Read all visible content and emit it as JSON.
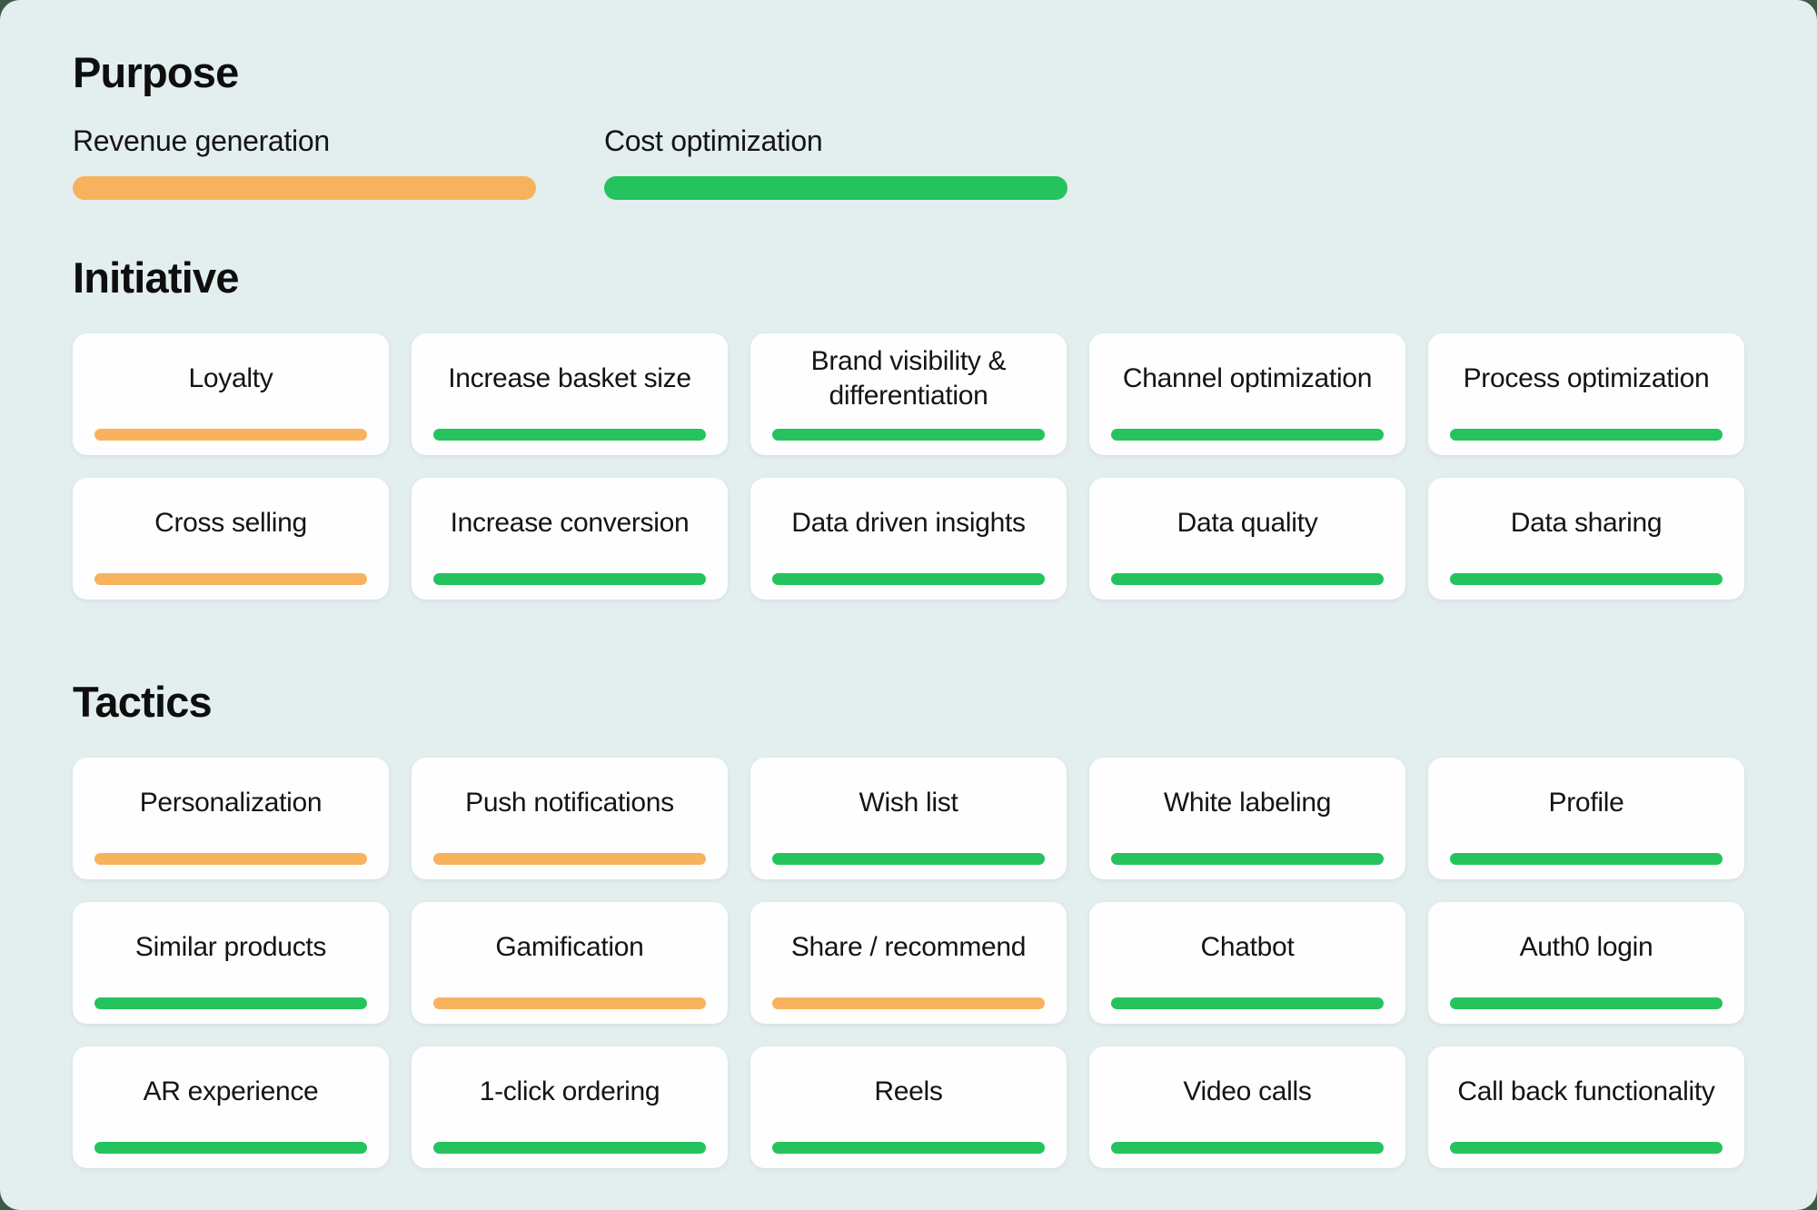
{
  "colors": {
    "background": "#E3EEEF",
    "behind_page": "#3D5A47",
    "card_background": "#FEFEFE",
    "revenue": "#F8B25D",
    "cost": "#24C35E",
    "text": "#141414"
  },
  "sections": {
    "purpose": {
      "title": "Purpose",
      "legend": [
        {
          "label": "Revenue generation",
          "purpose": "revenue"
        },
        {
          "label": "Cost optimization",
          "purpose": "cost"
        }
      ]
    },
    "initiative": {
      "title": "Initiative",
      "rows": [
        [
          {
            "label": "Loyalty",
            "purpose": "revenue"
          },
          {
            "label": "Increase basket size",
            "purpose": "cost"
          },
          {
            "label": "Brand visibility & differentiation",
            "purpose": "cost"
          },
          {
            "label": "Channel optimization",
            "purpose": "cost"
          },
          {
            "label": "Process optimization",
            "purpose": "cost"
          }
        ],
        [
          {
            "label": "Cross selling",
            "purpose": "revenue"
          },
          {
            "label": "Increase conversion",
            "purpose": "cost"
          },
          {
            "label": "Data driven insights",
            "purpose": "cost"
          },
          {
            "label": "Data quality",
            "purpose": "cost"
          },
          {
            "label": "Data sharing",
            "purpose": "cost"
          }
        ]
      ]
    },
    "tactics": {
      "title": "Tactics",
      "rows": [
        [
          {
            "label": "Personalization",
            "purpose": "revenue"
          },
          {
            "label": "Push notifications",
            "purpose": "revenue"
          },
          {
            "label": "Wish list",
            "purpose": "cost"
          },
          {
            "label": "White labeling",
            "purpose": "cost"
          },
          {
            "label": "Profile",
            "purpose": "cost"
          }
        ],
        [
          {
            "label": "Similar products",
            "purpose": "cost"
          },
          {
            "label": "Gamification",
            "purpose": "revenue"
          },
          {
            "label": "Share / recommend",
            "purpose": "revenue"
          },
          {
            "label": "Chatbot",
            "purpose": "cost"
          },
          {
            "label": "Auth0 login",
            "purpose": "cost"
          }
        ],
        [
          {
            "label": "AR experience",
            "purpose": "cost"
          },
          {
            "label": "1-click ordering",
            "purpose": "cost"
          },
          {
            "label": "Reels",
            "purpose": "cost"
          },
          {
            "label": "Video calls",
            "purpose": "cost"
          },
          {
            "label": "Call back functionality",
            "purpose": "cost"
          }
        ]
      ]
    }
  }
}
